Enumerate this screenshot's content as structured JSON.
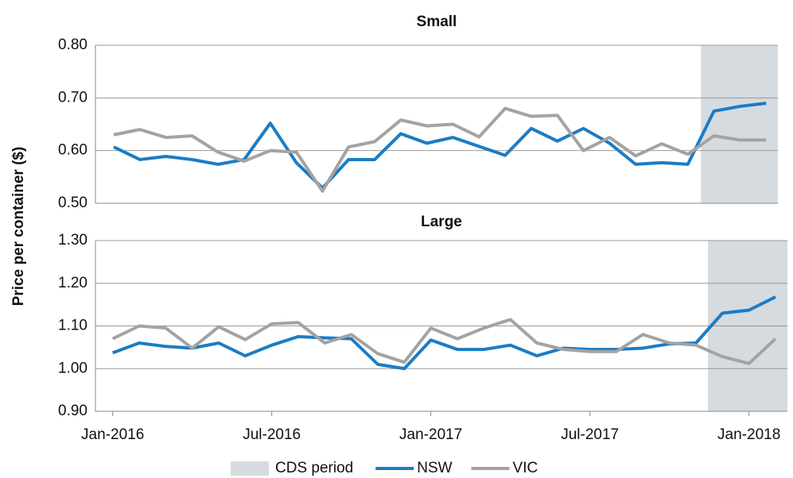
{
  "ylabel": "Price per container ($)",
  "chart_data": [
    {
      "type": "line",
      "title": "Small",
      "xlim": [
        -0.7,
        25.45
      ],
      "ylim": [
        0.5,
        0.8
      ],
      "yticks": [
        {
          "value": 0.5,
          "label": "0.50"
        },
        {
          "value": 0.6,
          "label": "0.60"
        },
        {
          "value": 0.7,
          "label": "0.70"
        },
        {
          "value": 0.8,
          "label": "0.80"
        }
      ],
      "grid": true,
      "shade": {
        "color": "#d6dbe0",
        "xrange": [
          22.5,
          25.45
        ]
      },
      "series": [
        {
          "name": "NSW",
          "color": "#1b7cc4",
          "values": [
            0.607,
            0.583,
            0.589,
            0.583,
            0.574,
            0.583,
            0.652,
            0.577,
            0.529,
            0.583,
            0.583,
            0.632,
            0.614,
            0.625,
            0.608,
            0.591,
            0.642,
            0.618,
            0.642,
            0.614,
            0.574,
            0.577,
            0.574,
            0.675,
            0.684,
            0.69
          ]
        },
        {
          "name": "VIC",
          "color": "#a3a3a3",
          "values": [
            0.63,
            0.64,
            0.625,
            0.628,
            0.597,
            0.58,
            0.6,
            0.597,
            0.523,
            0.607,
            0.617,
            0.658,
            0.647,
            0.65,
            0.626,
            0.68,
            0.665,
            0.667,
            0.6,
            0.625,
            0.59,
            0.613,
            0.593,
            0.628,
            0.62,
            0.62
          ]
        }
      ]
    },
    {
      "type": "line",
      "title": "Large",
      "categories": [
        "Jan-2016",
        null,
        null,
        null,
        null,
        null,
        "Jul-2016",
        null,
        null,
        null,
        null,
        null,
        "Jan-2017",
        null,
        null,
        null,
        null,
        null,
        "Jul-2017",
        null,
        null,
        null,
        null,
        null,
        "Jan-2018",
        null
      ],
      "xlim": [
        -0.65,
        25.45
      ],
      "ylim": [
        0.9,
        1.3
      ],
      "yticks": [
        {
          "value": 0.9,
          "label": "0.90"
        },
        {
          "value": 1.0,
          "label": "1.00"
        },
        {
          "value": 1.1,
          "label": "1.10"
        },
        {
          "value": 1.2,
          "label": "1.20"
        },
        {
          "value": 1.3,
          "label": "1.30"
        }
      ],
      "grid": true,
      "shade": {
        "name": "CDS period",
        "color": "#d6dbe0",
        "xrange": [
          22.45,
          25.45
        ]
      },
      "series": [
        {
          "name": "NSW",
          "color": "#1b7cc4",
          "values": [
            1.037,
            1.06,
            1.052,
            1.048,
            1.06,
            1.03,
            1.055,
            1.075,
            1.072,
            1.07,
            1.01,
            1.0,
            1.067,
            1.045,
            1.045,
            1.055,
            1.03,
            1.048,
            1.045,
            1.045,
            1.048,
            1.058,
            1.06,
            1.13,
            1.137,
            1.168
          ]
        },
        {
          "name": "VIC",
          "color": "#a3a3a3",
          "values": [
            1.07,
            1.1,
            1.095,
            1.048,
            1.098,
            1.068,
            1.105,
            1.108,
            1.06,
            1.08,
            1.035,
            1.015,
            1.095,
            1.07,
            1.095,
            1.115,
            1.06,
            1.045,
            1.04,
            1.04,
            1.08,
            1.06,
            1.055,
            1.028,
            1.012,
            1.07
          ]
        }
      ]
    }
  ]
}
